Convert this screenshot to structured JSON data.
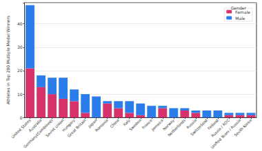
{
  "chart_data": {
    "type": "bar",
    "stacked": true,
    "y_label": "Athletes in Top 200 Multiple Medal Winners",
    "legend_title": "Gender",
    "legend": "top-right",
    "grid": true,
    "categories": [
      "United States",
      "Australia",
      "Germany(Combined)",
      "Soviet Union",
      "Hungary",
      "Great Britain",
      "Japan",
      "Romania",
      "China",
      "Italy",
      "Sweden",
      "France",
      "Jamaica",
      "Norway",
      "Netherlands",
      "Russia",
      "Switzerland",
      "Finland",
      "Russia / ROC",
      "Unified Team / Russia",
      "South Korea"
    ],
    "series": [
      {
        "name": "Female",
        "color": "#d6336c",
        "values": [
          21,
          13,
          10,
          8,
          7,
          2,
          0,
          6,
          4,
          2,
          1,
          0,
          4,
          0,
          3,
          2,
          0,
          0,
          1,
          1,
          1
        ]
      },
      {
        "name": "Male",
        "color": "#2b7de9",
        "values": [
          27,
          5,
          7,
          9,
          5,
          8,
          9,
          1,
          3,
          5,
          5,
          5,
          1,
          4,
          1,
          1,
          3,
          3,
          1,
          1,
          1
        ]
      }
    ],
    "ylim": [
      0,
      49
    ],
    "yticks": [
      0,
      10,
      20,
      30,
      40
    ]
  }
}
